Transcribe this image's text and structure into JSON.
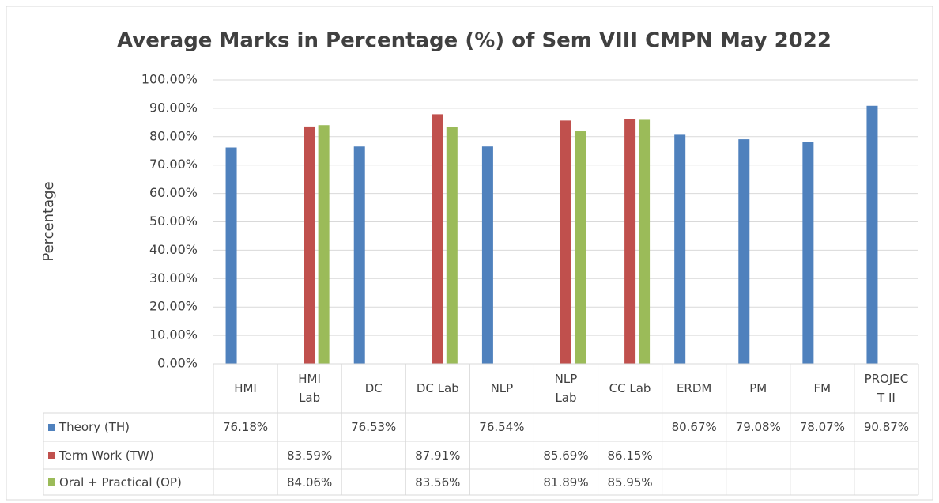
{
  "chart_data": {
    "type": "bar",
    "title": "Average Marks in Percentage (%) of Sem VIII CMPN May 2022",
    "y_label": "Percentage",
    "categories": [
      "HMI",
      "HMI Lab",
      "DC",
      "DC Lab",
      "NLP",
      "NLP Lab",
      "CC Lab",
      "ERDM",
      "PM",
      "FM",
      "PROJECT II"
    ],
    "series": [
      {
        "name": "Theory (TH)",
        "color": "#4f81bd",
        "values": [
          76.18,
          null,
          76.53,
          null,
          76.54,
          null,
          null,
          80.67,
          79.08,
          78.07,
          90.87
        ],
        "value_labels": [
          "76.18%",
          null,
          "76.53%",
          null,
          "76.54%",
          null,
          null,
          "80.67%",
          "79.08%",
          "78.07%",
          "90.87%"
        ]
      },
      {
        "name": "Term Work (TW)",
        "color": "#c0504d",
        "values": [
          null,
          83.59,
          null,
          87.91,
          null,
          85.69,
          86.15,
          null,
          null,
          null,
          null
        ],
        "value_labels": [
          null,
          "83.59%",
          null,
          "87.91%",
          null,
          "85.69%",
          "86.15%",
          null,
          null,
          null,
          null
        ]
      },
      {
        "name": "Oral + Practical (OP)",
        "color": "#9bbb59",
        "values": [
          null,
          84.06,
          null,
          83.56,
          null,
          81.89,
          85.95,
          null,
          null,
          null,
          null
        ],
        "value_labels": [
          null,
          "84.06%",
          null,
          "83.56%",
          null,
          "81.89%",
          "85.95%",
          null,
          null,
          null,
          null
        ]
      }
    ],
    "ylim": [
      0,
      100
    ],
    "yticks": [
      {
        "value": 0,
        "label": "0.00%"
      },
      {
        "value": 10,
        "label": "10.00%"
      },
      {
        "value": 20,
        "label": "20.00%"
      },
      {
        "value": 30,
        "label": "30.00%"
      },
      {
        "value": 40,
        "label": "40.00%"
      },
      {
        "value": 50,
        "label": "50.00%"
      },
      {
        "value": 60,
        "label": "60.00%"
      },
      {
        "value": 70,
        "label": "70.00%"
      },
      {
        "value": 80,
        "label": "80.00%"
      },
      {
        "value": 90,
        "label": "90.00%"
      },
      {
        "value": 100,
        "label": "100.00%"
      }
    ],
    "grid": true
  }
}
